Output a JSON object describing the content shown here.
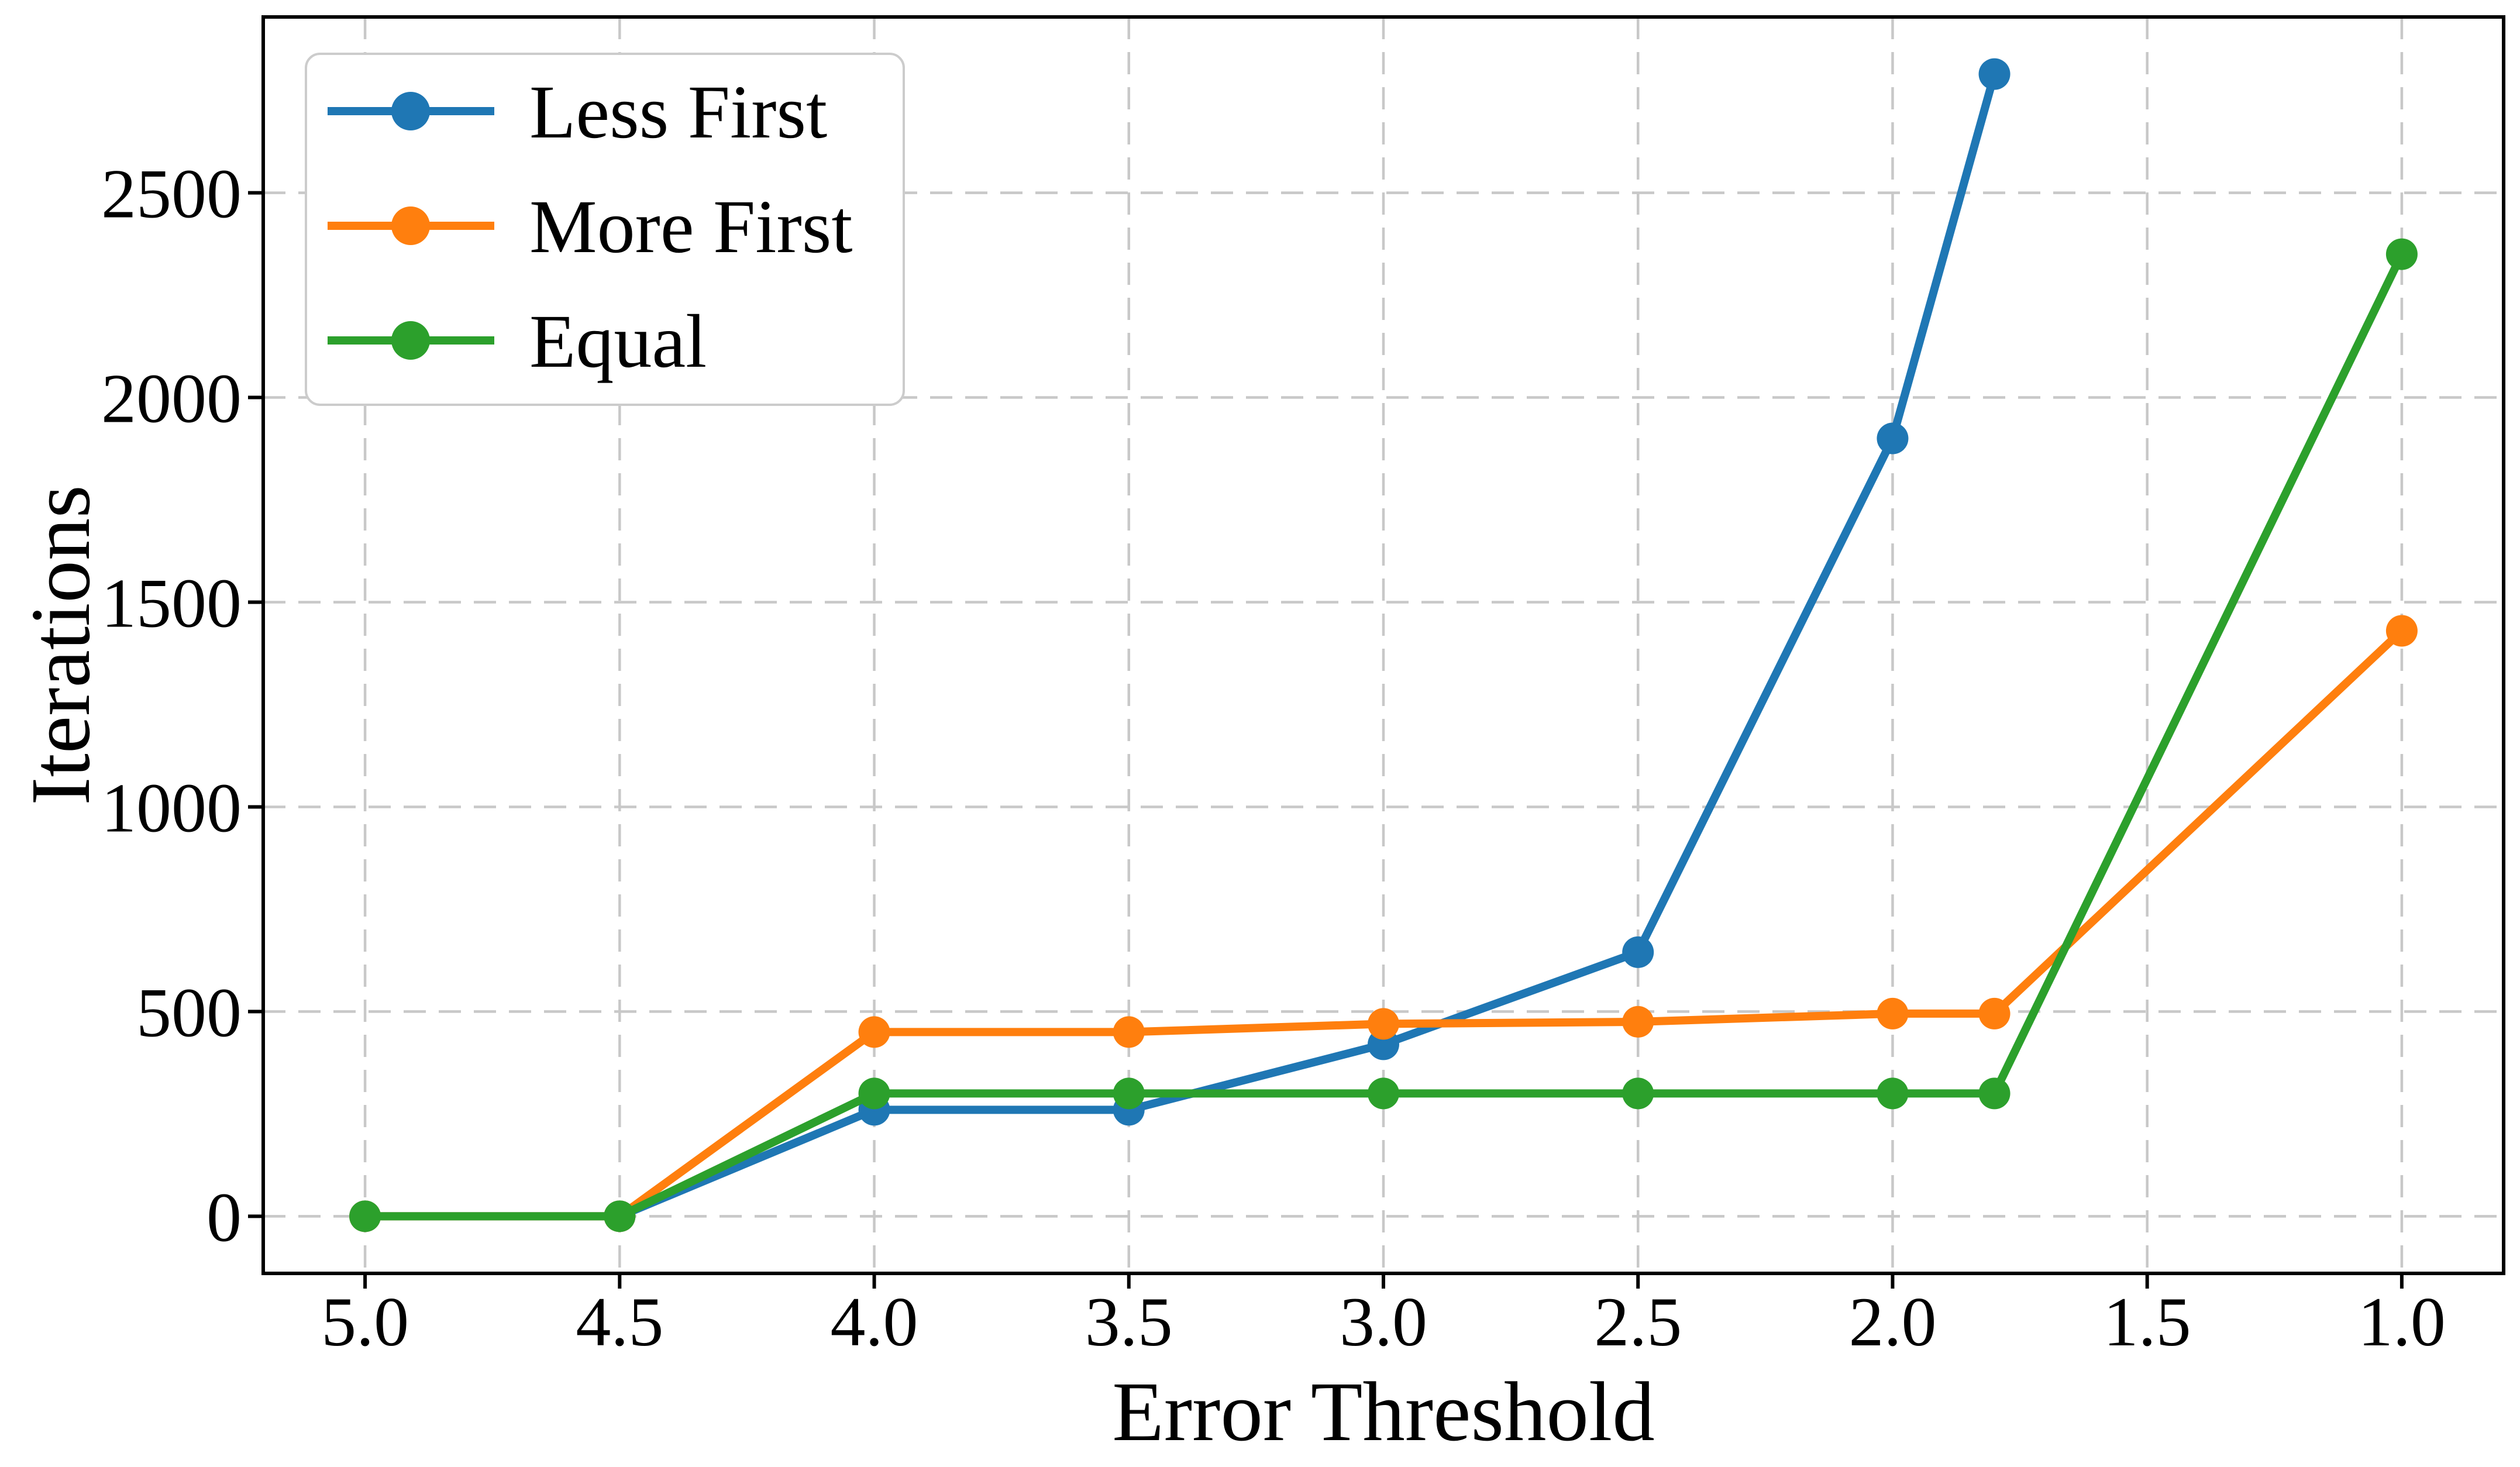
{
  "chart_data": {
    "type": "line",
    "title": "",
    "xlabel": "Error Threshold",
    "ylabel": "Iterations",
    "x_axis_reversed": true,
    "xlim": [
      5.2,
      0.8
    ],
    "ylim": [
      -139.5,
      2929.5
    ],
    "x_ticks": [
      5.0,
      4.5,
      4.0,
      3.5,
      3.0,
      2.5,
      2.0,
      1.5,
      1.0
    ],
    "x_tick_labels": [
      "5.0",
      "4.5",
      "4.0",
      "3.5",
      "3.0",
      "2.5",
      "2.0",
      "1.5",
      "1.0"
    ],
    "y_ticks": [
      0,
      500,
      1000,
      1500,
      2000,
      2500
    ],
    "y_tick_labels": [
      "0",
      "500",
      "1000",
      "1500",
      "2000",
      "2500"
    ],
    "grid": true,
    "grid_color": "#c8c8c8",
    "legend_position": "upper left",
    "series": [
      {
        "name": "Less First",
        "color": "#1f77b4",
        "x": [
          5.0,
          4.5,
          4.0,
          3.5,
          3.0,
          2.5,
          2.0,
          1.8
        ],
        "y": [
          0,
          0,
          260,
          260,
          420,
          645,
          1900,
          2790
        ]
      },
      {
        "name": "More First",
        "color": "#ff7f0e",
        "x": [
          5.0,
          4.5,
          4.0,
          3.5,
          3.0,
          2.5,
          2.0,
          1.8,
          1.0
        ],
        "y": [
          0,
          0,
          450,
          450,
          470,
          475,
          495,
          495,
          1430
        ]
      },
      {
        "name": "Equal",
        "color": "#2ca02c",
        "x": [
          5.0,
          4.5,
          4.0,
          3.5,
          3.0,
          2.5,
          2.0,
          1.8,
          1.0
        ],
        "y": [
          0,
          0,
          300,
          300,
          300,
          300,
          300,
          300,
          2350
        ]
      }
    ]
  }
}
